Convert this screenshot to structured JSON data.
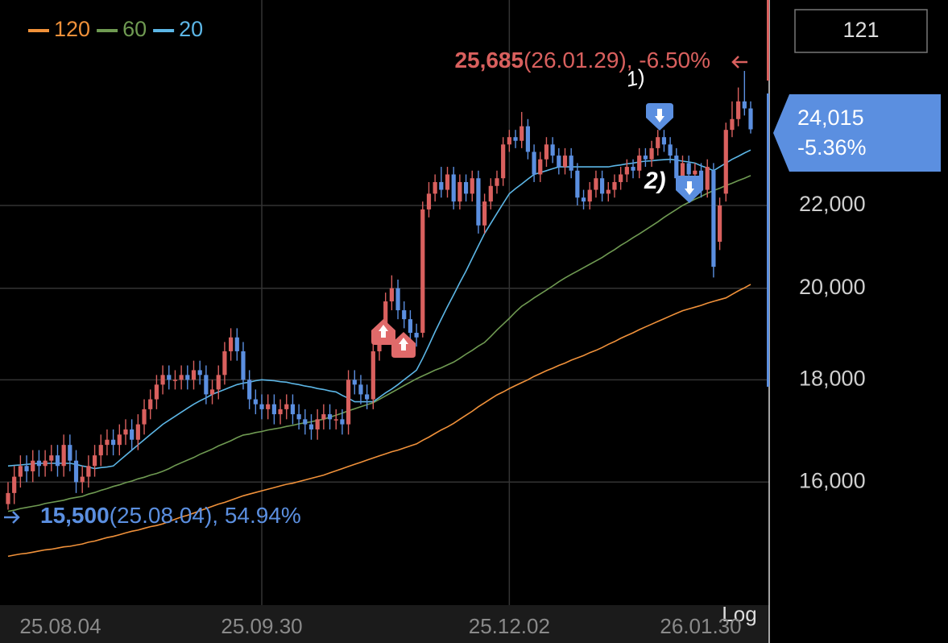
{
  "chart_data": {
    "type": "candlestick",
    "log_scale": true,
    "scale_label": "Log",
    "candle_count": 121,
    "up_color": "#d9605e",
    "down_color": "#5b8fe0",
    "categories": [
      "25.08.04",
      null,
      null,
      null,
      null,
      null,
      null,
      null,
      null,
      null,
      null,
      null,
      null,
      null,
      null,
      null,
      null,
      null,
      null,
      null,
      null,
      null,
      null,
      null,
      null,
      null,
      null,
      null,
      null,
      null,
      null,
      null,
      null,
      null,
      null,
      null,
      null,
      null,
      null,
      null,
      null,
      "25.09.30",
      null,
      null,
      null,
      null,
      null,
      null,
      null,
      null,
      null,
      null,
      null,
      null,
      null,
      null,
      null,
      null,
      null,
      null,
      null,
      null,
      null,
      null,
      null,
      null,
      null,
      null,
      null,
      null,
      null,
      null,
      null,
      null,
      null,
      null,
      null,
      null,
      null,
      null,
      null,
      "25.12.02",
      null,
      null,
      null,
      null,
      null,
      null,
      null,
      null,
      null,
      null,
      null,
      null,
      null,
      null,
      null,
      null,
      null,
      null,
      null,
      null,
      null,
      null,
      null,
      null,
      null,
      null,
      null,
      null,
      null,
      null,
      null,
      null,
      null,
      null,
      null,
      null,
      null,
      null,
      "26.01.30"
    ],
    "open": [
      15600,
      15800,
      16100,
      16300,
      16200,
      16400,
      16300,
      16400,
      16500,
      16300,
      16700,
      16400,
      16000,
      16100,
      16300,
      16500,
      16700,
      16800,
      16700,
      16900,
      17000,
      16800,
      17100,
      17400,
      17600,
      17900,
      18100,
      18000,
      18000,
      18100,
      18000,
      18200,
      18100,
      17700,
      17800,
      18100,
      18600,
      18900,
      18600,
      18000,
      17600,
      17500,
      17400,
      17500,
      17300,
      17400,
      17500,
      17300,
      17200,
      17100,
      17000,
      17200,
      17300,
      17200,
      17200,
      17100,
      18000,
      17900,
      17700,
      17600,
      18600,
      19000,
      19700,
      20000,
      19500,
      19300,
      19000,
      19000,
      21900,
      22300,
      22600,
      22400,
      22800,
      22100,
      22600,
      22300,
      22700,
      21500,
      22100,
      22500,
      22700,
      23600,
      23800,
      23700,
      24100,
      23400,
      22800,
      23200,
      23600,
      23300,
      23000,
      23300,
      22900,
      22200,
      22100,
      22400,
      22700,
      22300,
      22400,
      22600,
      22800,
      23000,
      22900,
      23300,
      23200,
      23500,
      23800,
      23600,
      23300,
      22700,
      23100,
      22800,
      22900,
      22400,
      22900,
      21100,
      22300,
      24000,
      24300,
      24800,
      24600
    ],
    "high": [
      16000,
      16300,
      16500,
      16500,
      16600,
      16600,
      16600,
      16700,
      16700,
      16900,
      16900,
      16600,
      16300,
      16500,
      16700,
      16900,
      17000,
      17000,
      17100,
      17200,
      17200,
      17300,
      17600,
      17800,
      18100,
      18300,
      18300,
      18200,
      18300,
      18300,
      18400,
      18400,
      18300,
      18000,
      18300,
      18800,
      19100,
      19100,
      18800,
      18200,
      17800,
      17700,
      17700,
      17700,
      17600,
      17700,
      17700,
      17500,
      17400,
      17300,
      17400,
      17500,
      17500,
      17400,
      17400,
      18200,
      18200,
      18100,
      17900,
      18800,
      19200,
      19900,
      20300,
      20200,
      19700,
      19500,
      19200,
      22100,
      22600,
      22800,
      23000,
      23000,
      23000,
      22800,
      22800,
      22900,
      22900,
      22300,
      22700,
      22900,
      23800,
      24000,
      24000,
      24500,
      24300,
      23600,
      23400,
      23800,
      23800,
      23500,
      23500,
      23500,
      23100,
      22400,
      22600,
      22900,
      22900,
      22600,
      22800,
      23000,
      23200,
      23200,
      23500,
      23500,
      23700,
      24000,
      24000,
      23800,
      23500,
      23300,
      23300,
      23100,
      23100,
      23200,
      23100,
      22200,
      24200,
      24800,
      25200,
      25685,
      24800
    ],
    "low": [
      15500,
      15600,
      15900,
      16000,
      16000,
      16100,
      16100,
      16200,
      16100,
      16100,
      16200,
      15800,
      15800,
      15900,
      16100,
      16300,
      16500,
      16500,
      16500,
      16700,
      16600,
      16600,
      16900,
      17200,
      17400,
      17700,
      17800,
      17800,
      17800,
      17800,
      17800,
      17900,
      17500,
      17500,
      17600,
      17900,
      18400,
      18400,
      17800,
      17400,
      17300,
      17200,
      17200,
      17100,
      17100,
      17200,
      17100,
      17000,
      16900,
      16800,
      16800,
      17000,
      17000,
      17000,
      16900,
      16900,
      17700,
      17500,
      17400,
      17400,
      18400,
      18800,
      19500,
      19300,
      19100,
      18800,
      18700,
      18900,
      21700,
      22100,
      22200,
      22200,
      21900,
      21900,
      22100,
      22100,
      21300,
      21300,
      21900,
      22300,
      22500,
      23400,
      23500,
      23500,
      23200,
      22600,
      22600,
      23000,
      23100,
      22800,
      22800,
      22700,
      22000,
      21900,
      21900,
      22200,
      22100,
      22100,
      22200,
      22400,
      22600,
      22700,
      22700,
      23000,
      23000,
      23300,
      23400,
      23100,
      22500,
      22500,
      22600,
      22600,
      22200,
      22200,
      20250,
      20900,
      22100,
      23800,
      24100,
      24400,
      23900
    ],
    "close": [
      15800,
      16100,
      16300,
      16200,
      16400,
      16300,
      16400,
      16500,
      16300,
      16700,
      16400,
      16000,
      16100,
      16300,
      16500,
      16700,
      16800,
      16700,
      16900,
      17000,
      16800,
      17100,
      17400,
      17600,
      17900,
      18100,
      18000,
      18000,
      18100,
      18000,
      18200,
      18100,
      17700,
      17800,
      18100,
      18600,
      18900,
      18600,
      18000,
      17600,
      17500,
      17400,
      17500,
      17300,
      17400,
      17500,
      17300,
      17200,
      17100,
      17000,
      17200,
      17300,
      17200,
      17200,
      17100,
      18000,
      17900,
      17700,
      17600,
      18600,
      19000,
      19700,
      20000,
      19500,
      19300,
      19000,
      18900,
      21900,
      22300,
      22600,
      22400,
      22800,
      22100,
      22600,
      22300,
      22700,
      21500,
      22100,
      22500,
      22700,
      23600,
      23800,
      23700,
      24100,
      23400,
      22800,
      23200,
      23600,
      23300,
      23000,
      23300,
      22900,
      22200,
      22100,
      22400,
      22700,
      22300,
      22400,
      22600,
      22800,
      23000,
      22900,
      23300,
      23200,
      23500,
      23800,
      23600,
      23300,
      22700,
      23100,
      22800,
      22900,
      22400,
      23000,
      20500,
      22000,
      24000,
      24300,
      24800,
      24600,
      24015
    ],
    "series": [
      {
        "name": "120",
        "color": "#f0913a",
        "values": [
          14690,
          14710,
          14730,
          14740,
          14760,
          14780,
          14800,
          14810,
          14830,
          14850,
          14860,
          14880,
          14900,
          14930,
          14950,
          14980,
          15010,
          15030,
          15060,
          15090,
          15120,
          15140,
          15170,
          15200,
          15220,
          15250,
          15290,
          15330,
          15370,
          15400,
          15440,
          15480,
          15520,
          15560,
          15600,
          15630,
          15670,
          15710,
          15750,
          15780,
          15810,
          15840,
          15870,
          15900,
          15930,
          15960,
          15980,
          16010,
          16040,
          16070,
          16100,
          16130,
          16170,
          16210,
          16250,
          16290,
          16330,
          16370,
          16410,
          16450,
          16490,
          16530,
          16570,
          16600,
          16640,
          16680,
          16720,
          16790,
          16850,
          16920,
          16990,
          17050,
          17120,
          17200,
          17280,
          17360,
          17450,
          17530,
          17610,
          17690,
          17750,
          17820,
          17880,
          17940,
          18000,
          18070,
          18130,
          18190,
          18240,
          18300,
          18350,
          18410,
          18460,
          18510,
          18570,
          18620,
          18680,
          18750,
          18810,
          18880,
          18940,
          19000,
          19070,
          19130,
          19190,
          19250,
          19310,
          19370,
          19430,
          19490,
          19530,
          19570,
          19610,
          19660,
          19700,
          19740,
          19780,
          19860,
          19940,
          20010,
          20090
        ]
      },
      {
        "name": "60",
        "color": "#6f9a52",
        "values": [
          15470,
          15490,
          15520,
          15540,
          15560,
          15580,
          15610,
          15630,
          15650,
          15670,
          15700,
          15720,
          15740,
          15780,
          15810,
          15850,
          15880,
          15920,
          15950,
          15990,
          16020,
          16060,
          16090,
          16130,
          16160,
          16200,
          16250,
          16310,
          16360,
          16410,
          16460,
          16520,
          16570,
          16620,
          16680,
          16730,
          16780,
          16840,
          16890,
          16910,
          16940,
          16960,
          16990,
          17010,
          17030,
          17060,
          17080,
          17110,
          17130,
          17150,
          17180,
          17200,
          17240,
          17280,
          17320,
          17370,
          17410,
          17450,
          17490,
          17530,
          17600,
          17670,
          17740,
          17810,
          17880,
          17950,
          18020,
          18080,
          18140,
          18200,
          18250,
          18310,
          18370,
          18450,
          18540,
          18620,
          18710,
          18790,
          18920,
          19060,
          19190,
          19320,
          19460,
          19590,
          19680,
          19780,
          19870,
          19960,
          20050,
          20150,
          20240,
          20320,
          20400,
          20480,
          20560,
          20640,
          20720,
          20820,
          20910,
          21010,
          21100,
          21200,
          21290,
          21390,
          21490,
          21590,
          21700,
          21800,
          21900,
          22000,
          22080,
          22160,
          22230,
          22310,
          22380,
          22440,
          22510,
          22570,
          22640,
          22700,
          22770
        ]
      },
      {
        "name": "20",
        "color": "#5cb6e6",
        "values": [
          16300,
          16310,
          16320,
          16330,
          16340,
          16350,
          16350,
          16350,
          16350,
          16350,
          16350,
          16330,
          16300,
          16280,
          16250,
          16270,
          16280,
          16300,
          16400,
          16500,
          16600,
          16700,
          16800,
          16900,
          17000,
          17100,
          17180,
          17260,
          17340,
          17420,
          17500,
          17570,
          17630,
          17700,
          17750,
          17800,
          17850,
          17900,
          17930,
          17950,
          17980,
          18000,
          17990,
          17980,
          17960,
          17950,
          17920,
          17900,
          17870,
          17850,
          17820,
          17800,
          17770,
          17750,
          17680,
          17620,
          17550,
          17550,
          17550,
          17550,
          17640,
          17730,
          17810,
          17900,
          18000,
          18100,
          18200,
          18450,
          18730,
          19020,
          19300,
          19580,
          19850,
          20130,
          20400,
          20700,
          21000,
          21300,
          21550,
          21800,
          22050,
          22300,
          22430,
          22550,
          22680,
          22800,
          22850,
          22900,
          22950,
          23000,
          23000,
          23000,
          23000,
          23000,
          23000,
          23000,
          23000,
          23000,
          23030,
          23050,
          23080,
          23100,
          23130,
          23150,
          23160,
          23180,
          23190,
          23200,
          23180,
          23150,
          23130,
          23100,
          23030,
          22970,
          22900,
          23000,
          23100,
          23200,
          23280,
          23370,
          23450
        ]
      }
    ],
    "ylim": [
      13900,
      27870
    ],
    "yticks": [
      {
        "value": 16000,
        "label": "16,000"
      },
      {
        "value": 18000,
        "label": "18,000"
      },
      {
        "value": 20000,
        "label": "20,000"
      },
      {
        "value": 22000,
        "label": "22,000"
      }
    ],
    "grid": true,
    "max_annotation": {
      "value": 25685,
      "value_label": "25,685",
      "detail": "(26.01.29), -6.50%"
    },
    "min_annotation": {
      "value": 15500,
      "value_label": "15,500",
      "detail": "(25.08.04), 54.94%"
    },
    "last_price": {
      "value": 24015,
      "label": "24,015",
      "change_label": "-5.36%"
    },
    "handwritten_notes": [
      "1)",
      "2)"
    ]
  }
}
